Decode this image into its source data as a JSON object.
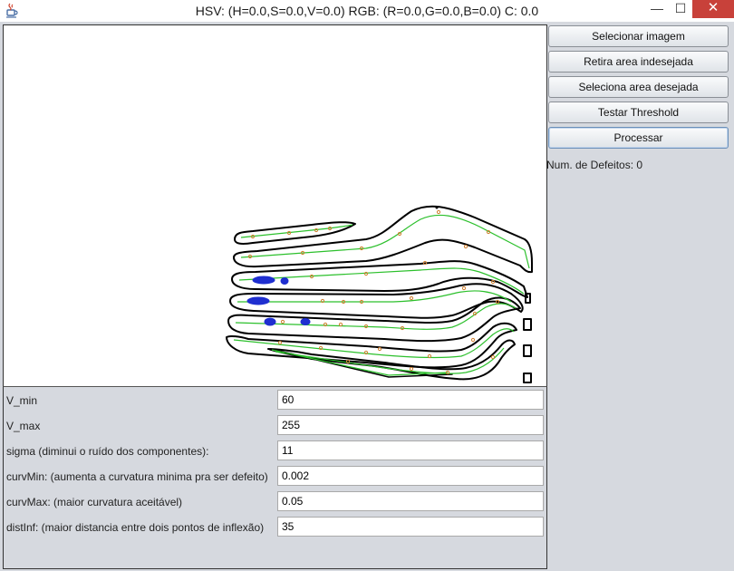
{
  "window": {
    "title": "HSV: (H=0.0,S=0.0,V=0.0) RGB: (R=0.0,G=0.0,B=0.0) C: 0.0",
    "icon": "java-cup-icon",
    "controls": {
      "minimize": "—",
      "maximize": "☐",
      "close": "✕"
    }
  },
  "sidebar": {
    "buttons": [
      {
        "label": "Selecionar imagem"
      },
      {
        "label": "Retira area indesejada"
      },
      {
        "label": "Seleciona area desejada"
      },
      {
        "label": "Testar Threshold"
      },
      {
        "label": "Processar"
      }
    ],
    "defects_label": "Num. de Defeitos: 0"
  },
  "params": [
    {
      "label": "V_min",
      "value": "60"
    },
    {
      "label": "V_max",
      "value": "255"
    },
    {
      "label": "sigma (diminui o ruído dos componentes):",
      "value": "11"
    },
    {
      "label": "curvMin: (aumenta a curvatura minima pra ser defeito)",
      "value": "0.002"
    },
    {
      "label": "curvMax: (maior curvatura aceitável)",
      "value": "0.05"
    },
    {
      "label": "distInf: (maior distancia entre dois pontos de inflexão)",
      "value": "35"
    }
  ],
  "colors": {
    "contour": "#000000",
    "skeleton": "#2cc02c",
    "inflection_point": "#d08030",
    "defect": "#1f2fd0"
  }
}
